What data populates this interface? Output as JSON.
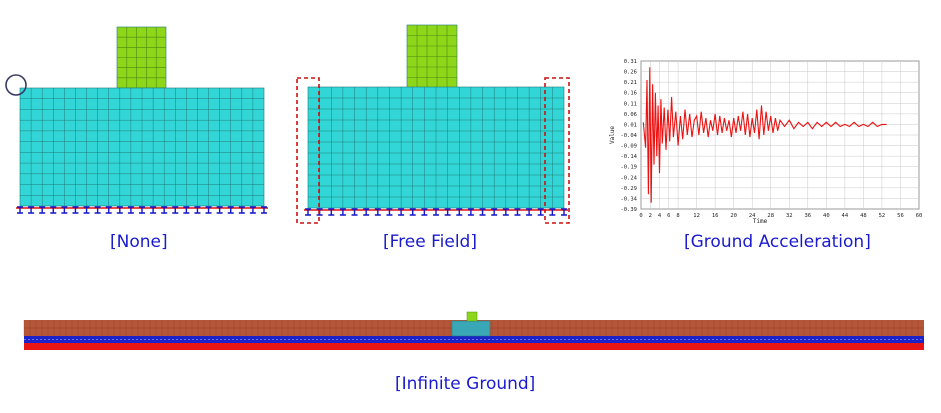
{
  "captions": {
    "none": "[None]",
    "free_field": "[Free Field]",
    "ground_acceleration": "[Ground Acceleration]",
    "infinite_ground": "[Infinite Ground]"
  },
  "colors": {
    "soil": "#33d6d6",
    "structure": "#8ed61a",
    "mesh_line": "#1e7a7a",
    "support": "#1515c8",
    "support_base": "#e01010",
    "highlight_box": "#cc1111",
    "signal": "#ee1111",
    "caption": "#1a1ad0",
    "ground_top": "#b5563a",
    "ground_band": "#1a22c8",
    "ground_bottom": "#e81515",
    "ground_mid": "#3aa7b6"
  },
  "chart_data": {
    "type": "line",
    "title": "",
    "xlabel": "Time",
    "ylabel": "Value",
    "xlim": [
      0,
      60
    ],
    "ylim": [
      -0.39,
      0.31
    ],
    "x_ticks": [
      0,
      2,
      4,
      6,
      8,
      12,
      16,
      20,
      24,
      28,
      32,
      36,
      40,
      44,
      48,
      52,
      56,
      60
    ],
    "y_ticks": [
      0.31,
      0.26,
      0.21,
      0.16,
      0.11,
      0.06,
      0.01,
      -0.04,
      -0.09,
      -0.14,
      -0.19,
      -0.24,
      -0.29,
      -0.34,
      -0.39
    ],
    "series": [
      {
        "x": [
          0.5,
          1.0,
          1.3,
          1.6,
          1.9,
          2.2,
          2.5,
          2.8,
          3.1,
          3.4,
          3.7,
          4.0,
          4.3,
          4.6,
          5.0,
          5.4,
          5.8,
          6.2,
          6.6,
          7.0,
          7.5,
          8.0,
          8.5,
          9.0,
          9.5,
          10.0,
          10.5,
          11.0,
          11.5,
          12.0,
          12.5,
          13.0,
          13.5,
          14.0,
          14.5,
          15.0,
          15.5,
          16.0,
          16.5,
          17.0,
          17.5,
          18.0,
          18.5,
          19.0,
          19.5,
          20.0,
          20.5,
          21.0,
          21.5,
          22.0,
          22.5,
          23.0,
          23.5,
          24.0,
          24.5,
          25.0,
          25.5,
          26.0,
          26.5,
          27.0,
          27.5,
          28.0,
          28.5,
          29.0,
          29.5,
          30.0,
          31.0,
          32.0,
          33.0,
          34.0,
          35.0,
          36.0,
          37.0,
          38.0,
          39.0,
          40.0,
          41.0,
          42.0,
          43.0,
          44.0,
          45.0,
          46.0,
          47.0,
          48.0,
          49.0,
          50.0,
          51.0,
          52.0,
          53.0
        ],
        "values": [
          0.02,
          -0.1,
          0.22,
          -0.32,
          0.28,
          -0.36,
          0.2,
          -0.18,
          0.16,
          -0.14,
          0.1,
          -0.22,
          0.13,
          -0.08,
          0.09,
          -0.11,
          0.08,
          -0.07,
          0.14,
          -0.05,
          0.07,
          -0.09,
          0.05,
          -0.06,
          0.08,
          -0.04,
          0.06,
          -0.05,
          0.03,
          0.05,
          -0.04,
          0.07,
          -0.03,
          0.04,
          -0.05,
          0.03,
          -0.02,
          0.06,
          -0.04,
          0.05,
          -0.03,
          0.04,
          -0.02,
          0.03,
          -0.05,
          0.04,
          -0.03,
          0.05,
          -0.02,
          0.07,
          -0.04,
          0.06,
          -0.05,
          0.04,
          -0.03,
          0.08,
          -0.06,
          0.1,
          -0.04,
          0.07,
          -0.02,
          0.05,
          -0.03,
          0.04,
          -0.02,
          0.03,
          0.0,
          0.03,
          -0.01,
          0.02,
          0.0,
          0.02,
          -0.01,
          0.02,
          0.0,
          0.02,
          0.0,
          0.02,
          0.0,
          0.01,
          0.0,
          0.02,
          0.0,
          0.01,
          0.0,
          0.02,
          0.0,
          0.01,
          0.01
        ]
      }
    ]
  }
}
